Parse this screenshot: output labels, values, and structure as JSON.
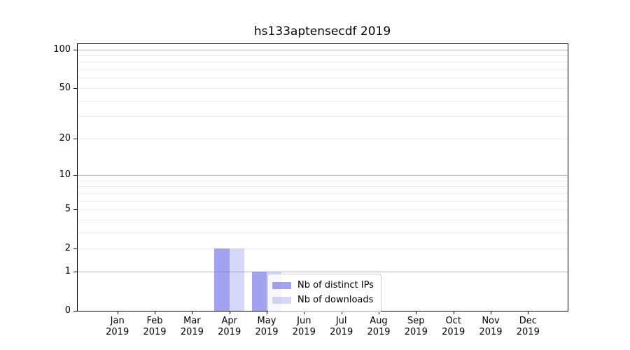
{
  "chart_data": {
    "type": "bar",
    "title": "hs133aptensecdf 2019",
    "categories": [
      "Jan",
      "Feb",
      "Mar",
      "Apr",
      "May",
      "Jun",
      "Jul",
      "Aug",
      "Sep",
      "Oct",
      "Nov",
      "Dec"
    ],
    "year_label": "2019",
    "series": [
      {
        "name": "Nb of distinct IPs",
        "color": "rgba(122,122,235,0.7)",
        "values": [
          0,
          0,
          0,
          2,
          1,
          0,
          0,
          0,
          0,
          0,
          0,
          0
        ]
      },
      {
        "name": "Nb of downloads",
        "color": "rgba(122,122,235,0.3)",
        "values": [
          0,
          0,
          0,
          2,
          1,
          0,
          0,
          0,
          0,
          0,
          0,
          0
        ]
      }
    ],
    "xlabel": "",
    "ylabel": "",
    "y_scale": "log1p",
    "ylim": [
      0,
      110
    ],
    "y_ticks": [
      0,
      1,
      2,
      5,
      10,
      20,
      50,
      100
    ],
    "y_major_gridlines": [
      1,
      10,
      100
    ],
    "y_minor_gridlines": [
      2,
      3,
      4,
      5,
      6,
      7,
      8,
      9,
      20,
      30,
      40,
      50,
      60,
      70,
      80,
      90
    ],
    "grid": "horizontal only",
    "legend_position": "lower center, inside axes"
  },
  "colors": {
    "background": "#ffffff",
    "spine": "#000000",
    "major_grid": "#b0b0b0",
    "minor_grid": "#ebebeb",
    "legend_border": "#cccccc",
    "text": "#000000"
  }
}
